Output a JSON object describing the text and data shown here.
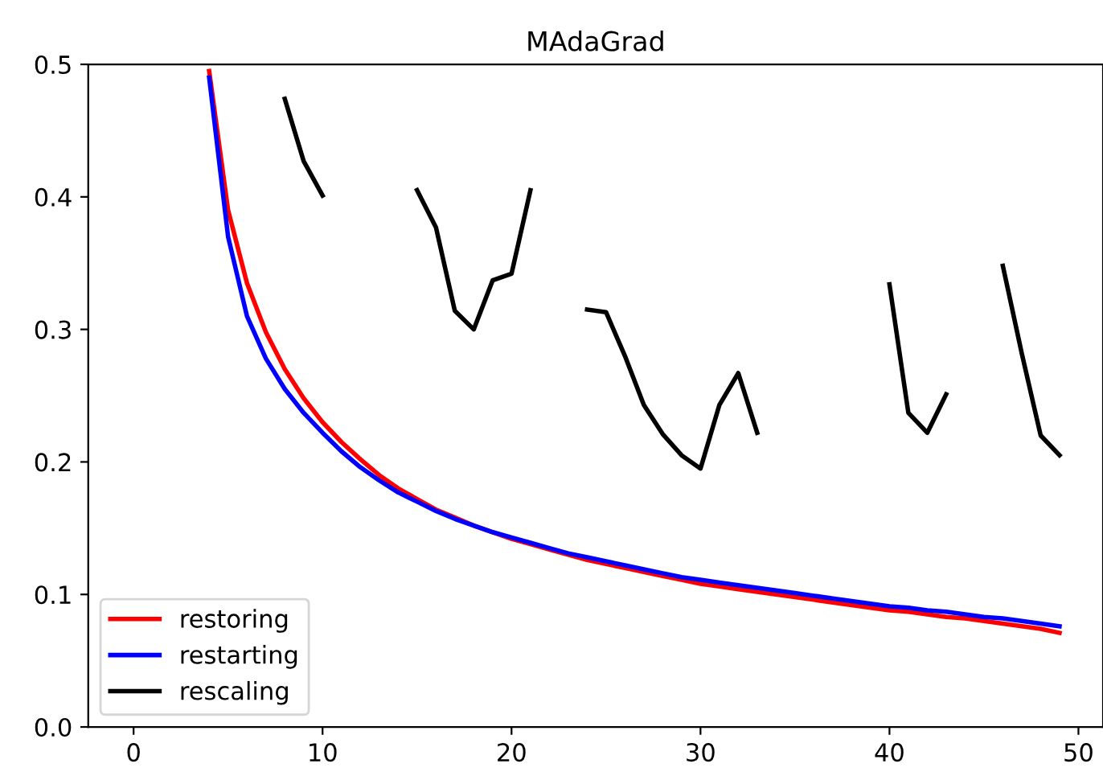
{
  "chart_data": {
    "type": "line",
    "title": "MAdaGrad",
    "x": [
      4,
      5,
      6,
      7,
      8,
      9,
      10,
      11,
      12,
      13,
      14,
      15,
      16,
      17,
      18,
      19,
      20,
      21,
      22,
      23,
      24,
      25,
      26,
      27,
      28,
      29,
      30,
      31,
      32,
      33,
      34,
      35,
      36,
      37,
      38,
      39,
      40,
      41,
      42,
      43,
      44,
      45,
      46,
      47,
      48,
      49
    ],
    "series": [
      {
        "name": "restoring",
        "color": "#ff0000",
        "values": [
          0.495,
          0.39,
          0.335,
          0.298,
          0.27,
          0.248,
          0.23,
          0.215,
          0.202,
          0.19,
          0.18,
          0.172,
          0.164,
          0.158,
          0.152,
          0.147,
          0.142,
          0.138,
          0.134,
          0.13,
          0.126,
          0.123,
          0.12,
          0.117,
          0.114,
          0.111,
          0.108,
          0.106,
          0.104,
          0.102,
          0.1,
          0.098,
          0.096,
          0.094,
          0.092,
          0.09,
          0.088,
          0.087,
          0.085,
          0.083,
          0.082,
          0.08,
          0.078,
          0.076,
          0.074,
          0.071
        ]
      },
      {
        "name": "restarting",
        "color": "#0000ff",
        "values": [
          0.49,
          0.37,
          0.31,
          0.278,
          0.255,
          0.237,
          0.222,
          0.208,
          0.196,
          0.186,
          0.177,
          0.17,
          0.163,
          0.157,
          0.152,
          0.147,
          0.143,
          0.139,
          0.135,
          0.131,
          0.128,
          0.125,
          0.122,
          0.119,
          0.116,
          0.113,
          0.111,
          0.109,
          0.107,
          0.105,
          0.103,
          0.101,
          0.099,
          0.097,
          0.095,
          0.093,
          0.091,
          0.09,
          0.088,
          0.087,
          0.085,
          0.083,
          0.082,
          0.08,
          0.078,
          0.076
        ]
      },
      {
        "name": "rescaling",
        "color": "#000000",
        "values": [
          null,
          null,
          null,
          null,
          0.474,
          0.427,
          0.401,
          null,
          null,
          null,
          null,
          0.405,
          0.377,
          0.314,
          0.3,
          0.337,
          0.342,
          0.405,
          null,
          null,
          0.315,
          0.313,
          0.28,
          0.243,
          0.221,
          0.205,
          0.195,
          0.243,
          0.267,
          0.222,
          null,
          null,
          null,
          null,
          null,
          null,
          0.334,
          0.237,
          0.222,
          0.251,
          null,
          null,
          0.348,
          0.282,
          0.22,
          0.205
        ]
      }
    ],
    "xlim": [
      -2.4,
      51.3
    ],
    "ylim": [
      0.0,
      0.5
    ],
    "xticks": [
      0,
      10,
      20,
      30,
      40,
      50
    ],
    "yticks": [
      {
        "value": 0.0,
        "label": "0.0"
      },
      {
        "value": 0.1,
        "label": "0.1"
      },
      {
        "value": 0.2,
        "label": "0.2"
      },
      {
        "value": 0.3,
        "label": "0.3"
      },
      {
        "value": 0.4,
        "label": "0.4"
      },
      {
        "value": 0.5,
        "label": "0.5"
      }
    ],
    "legend": "lower left",
    "grid": false,
    "line_style": "solid",
    "marker": "none"
  }
}
